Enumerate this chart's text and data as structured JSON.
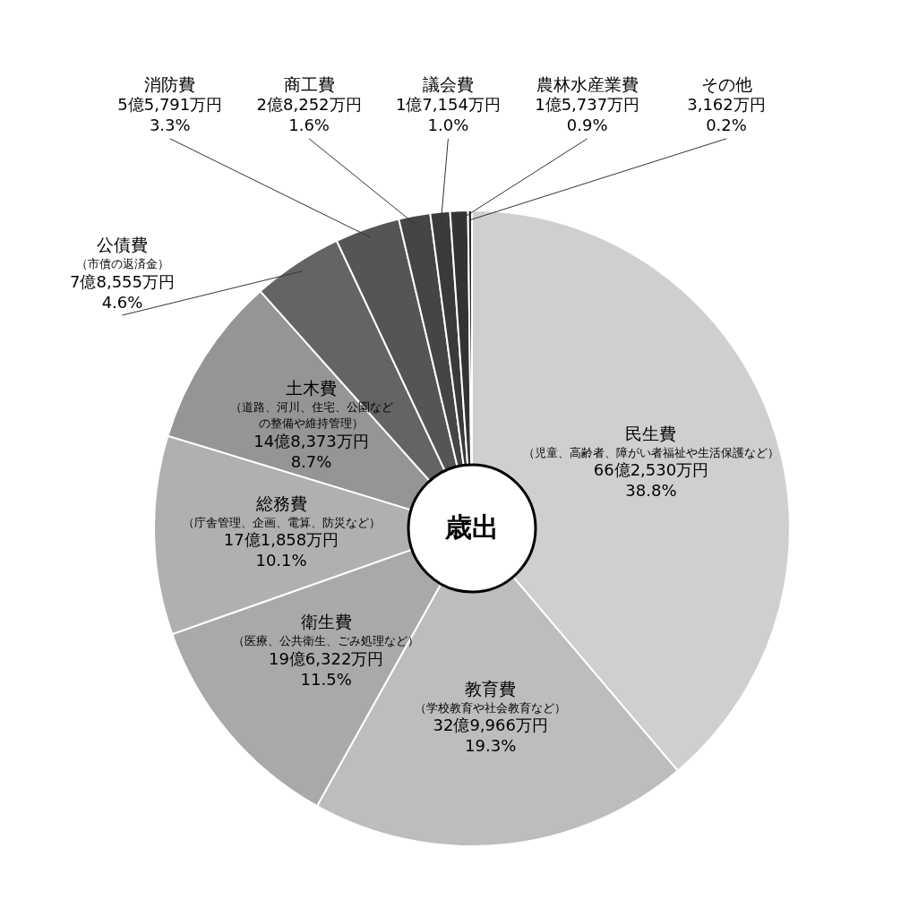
{
  "chart_data": {
    "type": "donut",
    "title": "歳出",
    "categories": [
      "民生費（児童、高齢者、障がい者福祉や生活保護など）",
      "教育費（学校教育や社会教育など）",
      "衛生費（医療、公共衛生、ごみ処理など）",
      "総務費（庁舎管理、企画、電算、防災など）",
      "土木費（道路、河川、住宅、公園などの整備や維持管理）",
      "公債費（市債の返済金）",
      "消防費",
      "商工費",
      "議会費",
      "農林水産業費",
      "その他"
    ],
    "values": [
      38.8,
      19.3,
      11.5,
      10.1,
      8.7,
      4.6,
      3.3,
      1.6,
      1.0,
      0.9,
      0.2
    ],
    "value_labels": [
      "66億2,530万円\n38.8%",
      "32億9,966万円\n19.3%",
      "19億6,322万円\n11.5%",
      "17億1,858万円\n10.1%",
      "14億8,373万円\n8.7%",
      "7億8,555万円\n4.6%",
      "5億5,791万円\n3.3%",
      "2億8,252万円\n1.6%",
      "1億7,154万円\n1.0%",
      "1億5,737万円\n0.9%",
      "3,162万円\n0.2%"
    ],
    "colors": [
      "#cfcfcf",
      "#bdbdbd",
      "#a9a9a9",
      "#b0b0b0",
      "#959595",
      "#646464",
      "#555555",
      "#454545",
      "#3a3a3a",
      "#333333",
      "#2a2a2a"
    ],
    "legend": false
  }
}
